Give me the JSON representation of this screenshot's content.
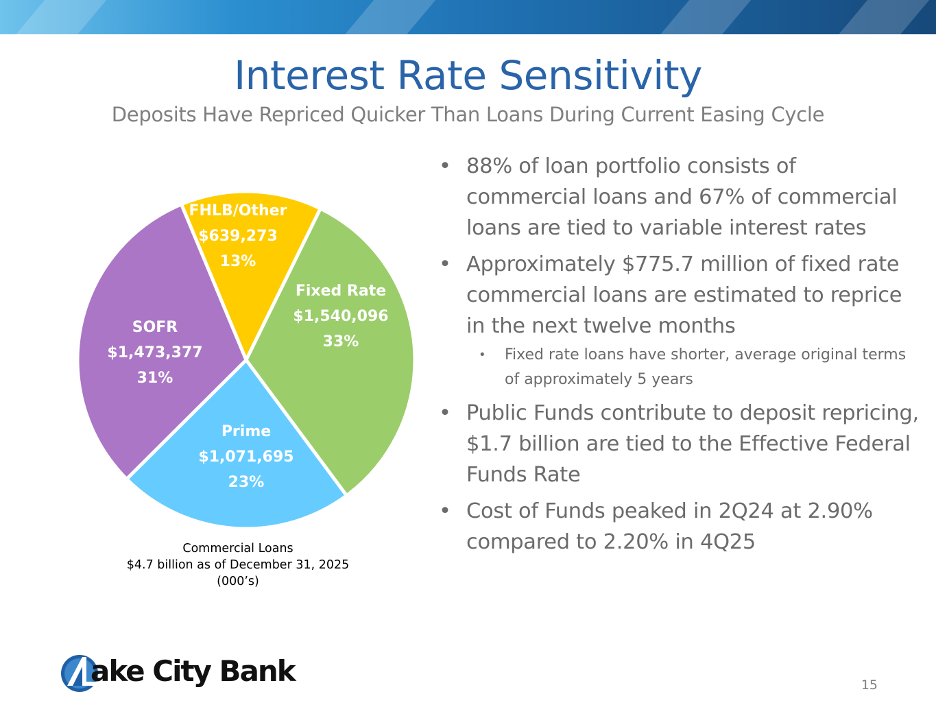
{
  "slide": {
    "title": "Interest Rate Sensitivity",
    "subtitle": "Deposits Have Repriced Quicker Than Loans During Current Easing Cycle",
    "page_number": "15"
  },
  "chart_data": {
    "type": "pie",
    "caption": [
      "Commercial Loans",
      "$4.7 billion as of December 31, 2025",
      "(000’s)"
    ],
    "slices": [
      {
        "name": "FHLB/Other",
        "value": 639273,
        "value_label": "$639,273",
        "percent_label": "13%",
        "color": "#ffcc00"
      },
      {
        "name": "Fixed Rate",
        "value": 1540096,
        "value_label": "$1,540,096",
        "percent_label": "33%",
        "color": "#9bcd6a"
      },
      {
        "name": "Prime",
        "value": 1071695,
        "value_label": "$1,071,695",
        "percent_label": "23%",
        "color": "#66ccff"
      },
      {
        "name": "SOFR",
        "value": 1473377,
        "value_label": "$1,473,377",
        "percent_label": "31%",
        "color": "#ab76c5"
      }
    ]
  },
  "bullets": [
    {
      "text": "88% of loan portfolio consists of commercial loans and 67% of commercial loans are tied to variable interest rates",
      "sub": []
    },
    {
      "text": "Approximately $775.7 million of fixed rate commercial loans are estimated to reprice in the next twelve months",
      "sub": [
        "Fixed rate loans have shorter, average original terms of approximately 5 years"
      ]
    },
    {
      "text": "Public Funds contribute to deposit repricing, $1.7 billion are tied to the Effective Federal Funds Rate",
      "sub": []
    },
    {
      "text": "Cost of Funds peaked in 2Q24 at 2.90% compared to 2.20% in 4Q25",
      "sub": []
    }
  ],
  "bullet_glyph": "•",
  "logo": {
    "text": "ake City Bank"
  },
  "colors": {
    "title": "#2a64a8",
    "body_text": "#6b6b6b"
  }
}
